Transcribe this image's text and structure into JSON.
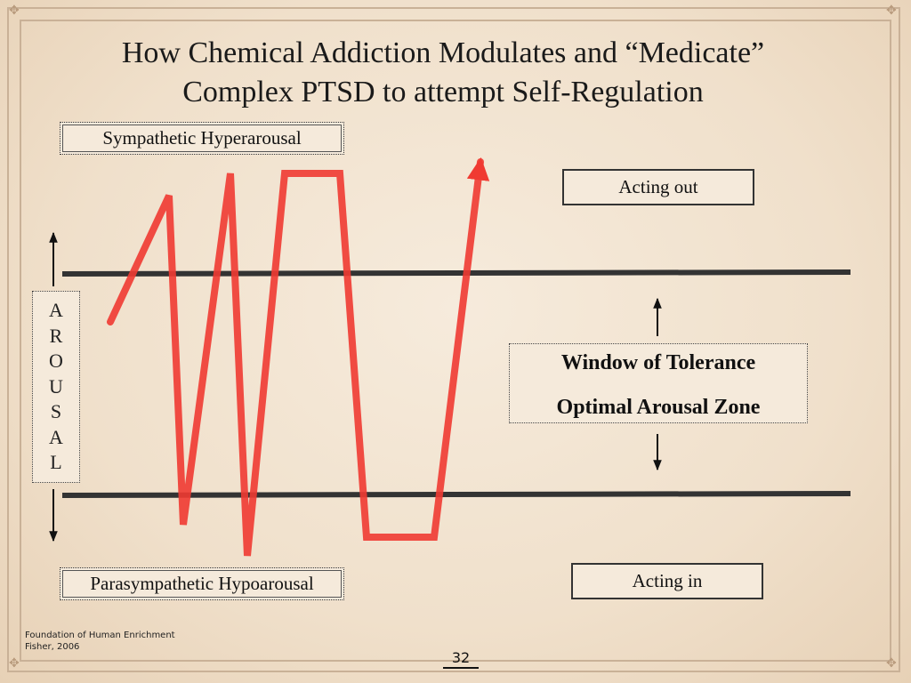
{
  "slide": {
    "title_line1": "How Chemical Addiction Modulates and “Medicate”",
    "title_line2": "Complex PTSD to attempt Self-Regulation",
    "page_number": "32"
  },
  "labels": {
    "hyperarousal": "Sympathetic Hyperarousal",
    "acting_out": "Acting out",
    "hypoarousal": "Parasympathetic Hypoarousal",
    "acting_in": "Acting in",
    "window_line1": "Window of Tolerance",
    "window_line2": "Optimal Arousal Zone",
    "arousal_letters": [
      "A",
      "R",
      "O",
      "U",
      "S",
      "A",
      "L"
    ]
  },
  "footer": {
    "line1": "Foundation of Human Enrichment",
    "line2": "Fisher, 2006"
  },
  "colors": {
    "arousal_line": "#f03a32",
    "boundary_line": "#333333"
  }
}
